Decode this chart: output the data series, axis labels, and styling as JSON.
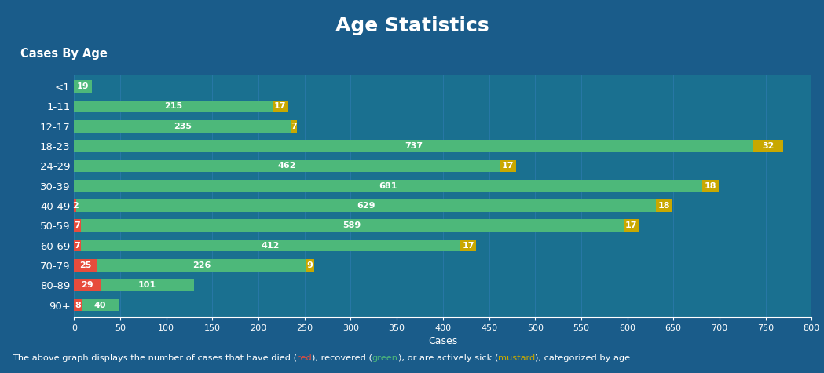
{
  "title": "Age Statistics",
  "subtitle": "Cases By Age",
  "bg_color": "#1a5c8a",
  "plot_bg_color": "#1a7090",
  "text_color": "#ffffff",
  "xlabel": "Cases",
  "categories": [
    "<1",
    "1-11",
    "12-17",
    "18-23",
    "24-29",
    "30-39",
    "40-49",
    "50-59",
    "60-69",
    "70-79",
    "80-89",
    "90+"
  ],
  "died": [
    0,
    0,
    0,
    0,
    0,
    0,
    2,
    7,
    7,
    25,
    29,
    8
  ],
  "recovered": [
    19,
    215,
    235,
    737,
    462,
    681,
    629,
    589,
    412,
    226,
    101,
    40
  ],
  "active": [
    0,
    17,
    7,
    32,
    17,
    18,
    18,
    17,
    17,
    9,
    0,
    0
  ],
  "color_died": "#e74c3c",
  "color_recovered": "#4db87a",
  "color_active": "#c8a800",
  "xlim_max": 800,
  "xtick_step": 50,
  "footer_parts": [
    [
      "The above graph displays the number of cases that have died (",
      "#ffffff"
    ],
    [
      "red",
      "#e74c3c"
    ],
    [
      "), recovered (",
      "#ffffff"
    ],
    [
      "green",
      "#4db87a"
    ],
    [
      "), or are actively sick (",
      "#ffffff"
    ],
    [
      "mustard",
      "#c8a800"
    ],
    [
      "), categorized by age.",
      "#ffffff"
    ]
  ]
}
